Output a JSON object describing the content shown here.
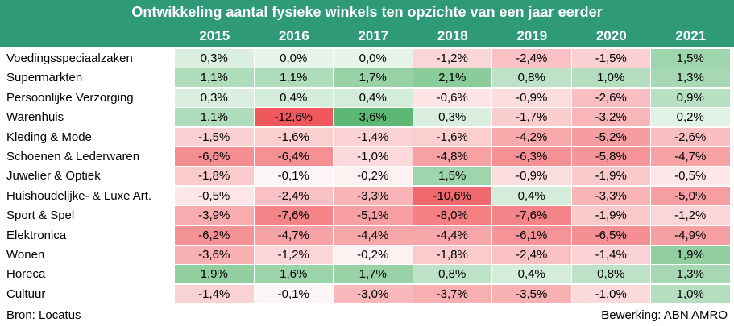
{
  "chart_data": {
    "type": "heatmap",
    "title": "Ontwikkeling aantal fysieke winkels ten opzichte van een jaar eerder",
    "columns": [
      "2015",
      "2016",
      "2017",
      "2018",
      "2019",
      "2020",
      "2021"
    ],
    "rows": [
      {
        "label": "Voedingsspeciaalzaken",
        "values": [
          0.3,
          0.0,
          0.0,
          -1.2,
          -2.4,
          -1.5,
          1.5
        ]
      },
      {
        "label": "Supermarkten",
        "values": [
          1.1,
          1.1,
          1.7,
          2.1,
          0.8,
          1.0,
          1.3
        ]
      },
      {
        "label": "Persoonlijke Verzorging",
        "values": [
          0.3,
          0.4,
          0.4,
          -0.6,
          -0.9,
          -2.6,
          0.9
        ]
      },
      {
        "label": "Warenhuis",
        "values": [
          1.1,
          -12.6,
          3.6,
          0.3,
          -1.7,
          -3.2,
          0.2
        ]
      },
      {
        "label": "Kleding & Mode",
        "values": [
          -1.5,
          -1.6,
          -1.4,
          -1.6,
          -4.2,
          -5.2,
          -2.6
        ]
      },
      {
        "label": "Schoenen & Lederwaren",
        "values": [
          -6.6,
          -6.4,
          -1.0,
          -4.8,
          -6.3,
          -5.8,
          -4.7
        ]
      },
      {
        "label": "Juwelier & Optiek",
        "values": [
          -1.8,
          -0.1,
          -0.2,
          1.5,
          -0.9,
          -1.9,
          -0.5
        ]
      },
      {
        "label": "Huishoudelijke- & Luxe Art.",
        "values": [
          -0.5,
          -2.4,
          -3.3,
          -10.6,
          0.4,
          -3.3,
          -5.0
        ]
      },
      {
        "label": "Sport & Spel",
        "values": [
          -3.9,
          -7.6,
          -5.1,
          -8.0,
          -7.6,
          -1.9,
          -1.2
        ]
      },
      {
        "label": "Elektronica",
        "values": [
          -6.2,
          -4.7,
          -4.4,
          -4.4,
          -6.1,
          -6.5,
          -4.9
        ]
      },
      {
        "label": "Wonen",
        "values": [
          -3.6,
          -1.2,
          -0.2,
          -1.8,
          -2.4,
          -1.4,
          1.9
        ]
      },
      {
        "label": "Horeca",
        "values": [
          1.9,
          1.6,
          1.7,
          0.8,
          0.4,
          0.8,
          1.3
        ]
      },
      {
        "label": "Cultuur",
        "values": [
          -1.4,
          -0.1,
          -3.0,
          -3.7,
          -3.5,
          -1.0,
          1.0
        ]
      }
    ],
    "value_format": "percent-1-decimal-comma",
    "colors": {
      "header_bg": "#2e9a78",
      "positive_max": "#5db874",
      "neutral": "#ffffff",
      "negative_max": "#f0585e"
    }
  },
  "footer": {
    "source": "Bron: Locatus",
    "credit": "Bewerking: ABN AMRO"
  }
}
